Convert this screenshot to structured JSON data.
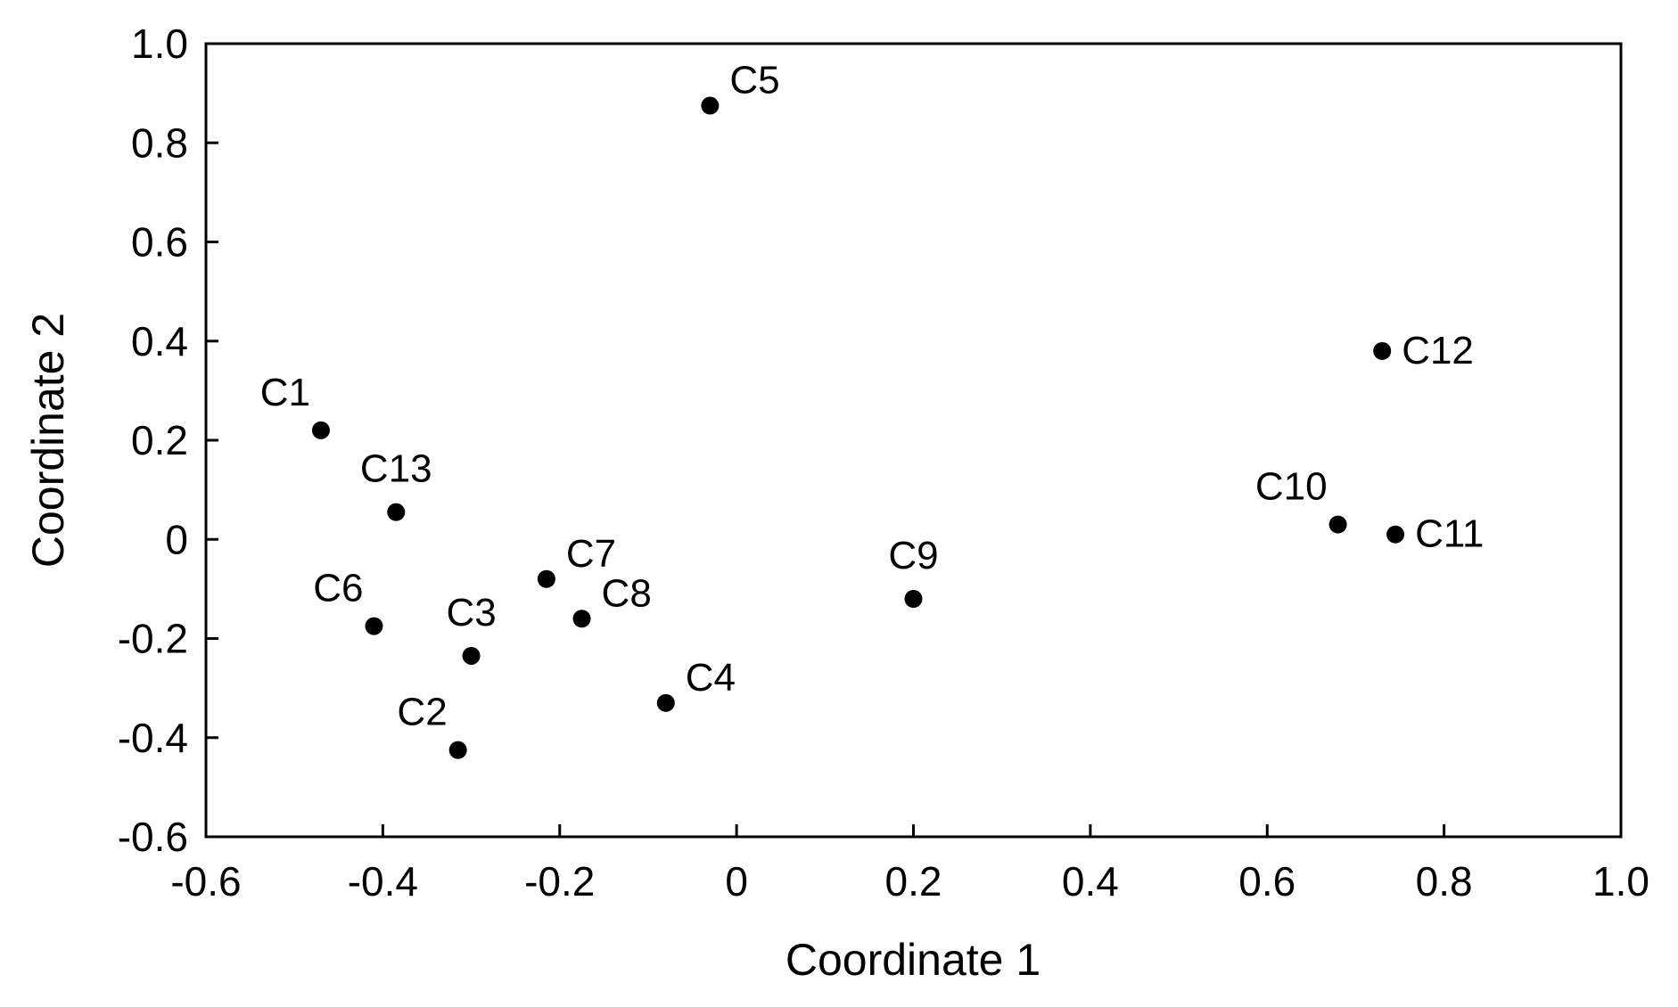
{
  "chart_data": {
    "type": "scatter",
    "title": "",
    "xlabel": "Coordinate 1",
    "ylabel": "Coordinate 2",
    "xlim": [
      -0.6,
      1.0
    ],
    "ylim": [
      -0.6,
      1.0
    ],
    "grid": false,
    "legend": "none",
    "marker_color": "#000000",
    "x_ticks": [
      {
        "value": -0.6,
        "label": "-0.6"
      },
      {
        "value": -0.4,
        "label": "-0.4"
      },
      {
        "value": -0.2,
        "label": "-0.2"
      },
      {
        "value": 0,
        "label": "0"
      },
      {
        "value": 0.2,
        "label": "0.2"
      },
      {
        "value": 0.4,
        "label": "0.4"
      },
      {
        "value": 0.6,
        "label": "0.6"
      },
      {
        "value": 0.8,
        "label": "0.8"
      },
      {
        "value": 1.0,
        "label": "1.0"
      }
    ],
    "y_ticks": [
      {
        "value": -0.6,
        "label": "-0.6"
      },
      {
        "value": -0.4,
        "label": "-0.4"
      },
      {
        "value": -0.2,
        "label": "-0.2"
      },
      {
        "value": 0,
        "label": "0"
      },
      {
        "value": 0.2,
        "label": "0.2"
      },
      {
        "value": 0.4,
        "label": "0.4"
      },
      {
        "value": 0.6,
        "label": "0.6"
      },
      {
        "value": 0.8,
        "label": "0.8"
      },
      {
        "value": 1.0,
        "label": "1.0"
      }
    ],
    "points": [
      {
        "label": "C1",
        "x": -0.47,
        "y": 0.22,
        "label_pos": "above-left"
      },
      {
        "label": "C2",
        "x": -0.315,
        "y": -0.425,
        "label_pos": "above-left"
      },
      {
        "label": "C3",
        "x": -0.3,
        "y": -0.235,
        "label_pos": "above"
      },
      {
        "label": "C4",
        "x": -0.08,
        "y": -0.33,
        "label_pos": "above-right"
      },
      {
        "label": "C5",
        "x": -0.03,
        "y": 0.875,
        "label_pos": "above-right"
      },
      {
        "label": "C6",
        "x": -0.41,
        "y": -0.175,
        "label_pos": "above-left"
      },
      {
        "label": "C7",
        "x": -0.215,
        "y": -0.08,
        "label_pos": "above-right"
      },
      {
        "label": "C8",
        "x": -0.175,
        "y": -0.16,
        "label_pos": "above-right"
      },
      {
        "label": "C9",
        "x": 0.2,
        "y": -0.12,
        "label_pos": "above"
      },
      {
        "label": "C10",
        "x": 0.68,
        "y": 0.03,
        "label_pos": "above-left"
      },
      {
        "label": "C11",
        "x": 0.745,
        "y": 0.01,
        "label_pos": "right"
      },
      {
        "label": "C12",
        "x": 0.73,
        "y": 0.38,
        "label_pos": "right"
      },
      {
        "label": "C13",
        "x": -0.385,
        "y": 0.055,
        "label_pos": "above"
      }
    ]
  }
}
